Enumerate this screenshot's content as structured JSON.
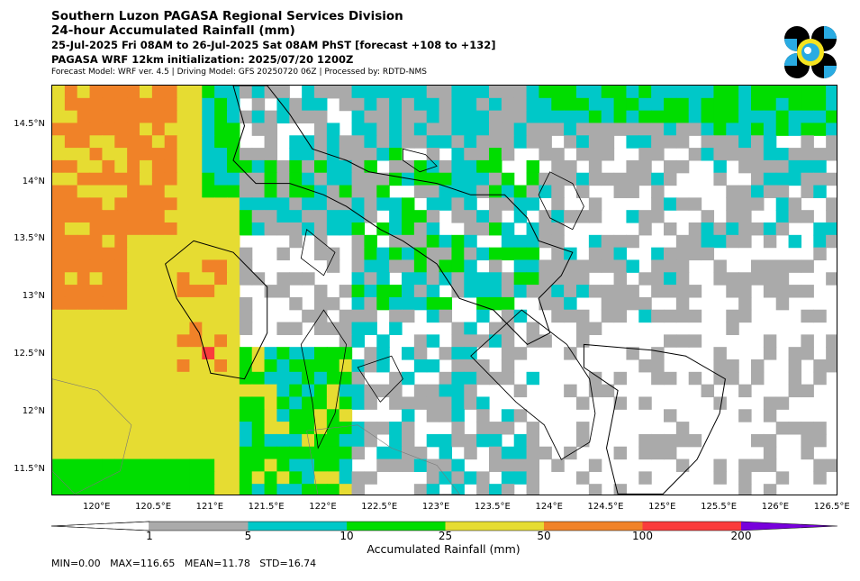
{
  "titles": {
    "line1": "Southern Luzon PAGASA Regional Services Division",
    "line2": "24-hour Accumulated Rainfall (mm)",
    "line3": "25-Jul-2025 Fri 08AM to 26-Jul-2025 Sat 08AM PhST [forecast +108 to +132]",
    "line4": "PAGASA WRF 12km initialization: 2025/07/20 1200Z",
    "line5": "Forecast Model: WRF ver. 4.5 | Driving Model: GFS 20250720 06Z | Processed by: RDTD-NMS"
  },
  "logo": {
    "name": "pagasa-logo",
    "colors": [
      "#000000",
      "#29abe2",
      "#f5e31f"
    ]
  },
  "axes": {
    "lon_range": [
      119.6,
      126.55
    ],
    "lat_range": [
      11.28,
      14.85
    ],
    "lat_ticks": [
      "14.5°N",
      "14°N",
      "13.5°N",
      "13°N",
      "12.5°N",
      "12°N",
      "11.5°N"
    ],
    "lat_values": [
      14.5,
      14.0,
      13.5,
      13.0,
      12.5,
      12.0,
      11.5
    ],
    "lon_ticks": [
      "120°E",
      "120.5°E",
      "121°E",
      "121.5°E",
      "122°E",
      "122.5°E",
      "123°E",
      "123.5°E",
      "124°E",
      "124.5°E",
      "125°E",
      "125.5°E",
      "126°E",
      "126.5°E"
    ],
    "lon_values": [
      120.0,
      120.5,
      121.0,
      121.5,
      122.0,
      122.5,
      123.0,
      123.5,
      124.0,
      124.5,
      125.0,
      125.5,
      126.0,
      126.5
    ]
  },
  "colorbar": {
    "title": "Accumulated Rainfall (mm)",
    "labels": [
      "1",
      "5",
      "10",
      "25",
      "50",
      "100",
      "200"
    ],
    "colors": [
      "#ffffff",
      "#aaaaaa",
      "#00c8c8",
      "#00dd00",
      "#e6dc32",
      "#f08228",
      "#fa3c3c",
      "#7800dc"
    ]
  },
  "stats": "MIN=0.00   MAX=116.65   MEAN=11.78   STD=16.74",
  "chart_data": {
    "type": "heatmap",
    "title": "24-hour Accumulated Rainfall (mm)",
    "xlabel": "",
    "ylabel": "",
    "xlim": [
      119.6,
      126.55
    ],
    "ylim": [
      11.28,
      14.85
    ],
    "legend_title": "Accumulated Rainfall (mm)",
    "levels": [
      1,
      5,
      10,
      25,
      50,
      100,
      200
    ],
    "summary": {
      "min": 0.0,
      "max": 116.65,
      "mean": 11.78,
      "std": 16.74
    }
  }
}
